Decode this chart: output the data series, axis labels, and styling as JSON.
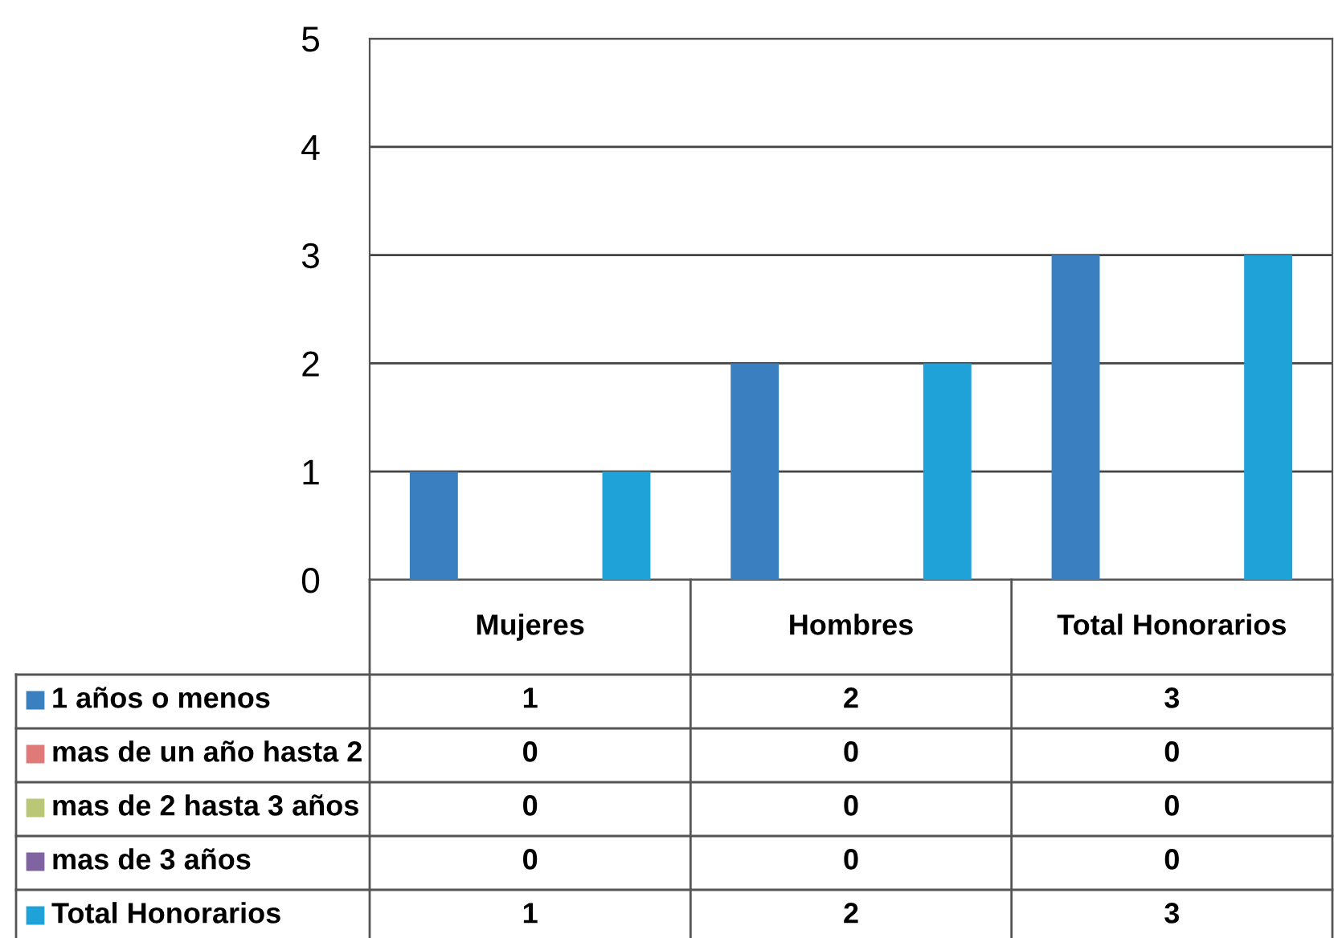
{
  "chart_data": {
    "type": "bar",
    "categories": [
      "Mujeres",
      "Hombres",
      "Total Honorarios"
    ],
    "series": [
      {
        "name": "1 años o menos",
        "color": "#3a80c1",
        "values": [
          1,
          2,
          3
        ]
      },
      {
        "name": "mas de un año hasta 2",
        "color": "#e07a78",
        "values": [
          0,
          0,
          0
        ]
      },
      {
        "name": "mas de 2 hasta 3 años",
        "color": "#b9c777",
        "values": [
          0,
          0,
          0
        ]
      },
      {
        "name": "mas de 3 años",
        "color": "#8064a2",
        "values": [
          0,
          0,
          0
        ]
      },
      {
        "name": "Total Honorarios",
        "color": "#1fa2d8",
        "values": [
          1,
          2,
          3
        ]
      }
    ],
    "ylim": [
      0,
      5
    ],
    "yticks": [
      0,
      1,
      2,
      3,
      4,
      5
    ],
    "grid": "y",
    "data_labels": true,
    "legend": "bottom"
  }
}
